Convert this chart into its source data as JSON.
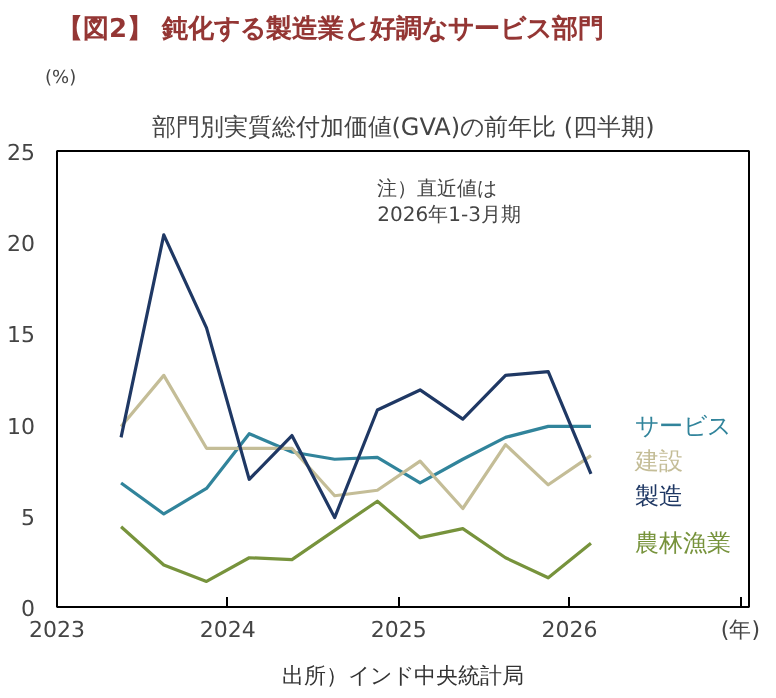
{
  "chart_data": {
    "type": "line",
    "title": "【図2】 鈍化する製造業と好調なサービス部門",
    "subtitle": "部門別実質総付加価値(GVA)の前年比 (四半期)",
    "ylabel": "(%)",
    "x": [
      2023.375,
      2023.625,
      2023.875,
      2024.125,
      2024.375,
      2024.625,
      2024.875,
      2025.125,
      2025.375,
      2025.625,
      2025.875,
      2026.125
    ],
    "xlim": [
      2023,
      2027.05
    ],
    "xticks": [
      2023,
      2024,
      2025,
      2026,
      {
        "value": 2027,
        "label": "(年)"
      }
    ],
    "ylim": [
      0,
      25
    ],
    "yticks": [
      0,
      5,
      10,
      15,
      20,
      25
    ],
    "grid": false,
    "series": [
      {
        "name": "サービス",
        "color": "#31849b",
        "values": [
          6.8,
          5.1,
          6.5,
          9.5,
          8.5,
          8.1,
          8.2,
          6.8,
          8.1,
          9.3,
          9.9,
          9.9
        ]
      },
      {
        "name": "建設",
        "color": "#c4bd97",
        "values": [
          9.9,
          12.7,
          8.7,
          8.7,
          8.7,
          6.1,
          6.4,
          8.0,
          5.4,
          8.9,
          6.7,
          8.3
        ]
      },
      {
        "name": "製造",
        "color": "#1f3864",
        "values": [
          9.3,
          20.4,
          15.3,
          7.0,
          9.4,
          4.9,
          10.8,
          11.9,
          10.3,
          12.7,
          12.9,
          7.3
        ]
      },
      {
        "name": "農林漁業",
        "color": "#77933c",
        "values": [
          4.4,
          2.3,
          1.4,
          2.7,
          2.6,
          4.2,
          5.8,
          3.8,
          4.3,
          2.7,
          1.6,
          3.5
        ]
      }
    ],
    "annotations": [
      "注）直近値は\n2026年1-3月期",
      "出所）インド中央統計局"
    ]
  }
}
